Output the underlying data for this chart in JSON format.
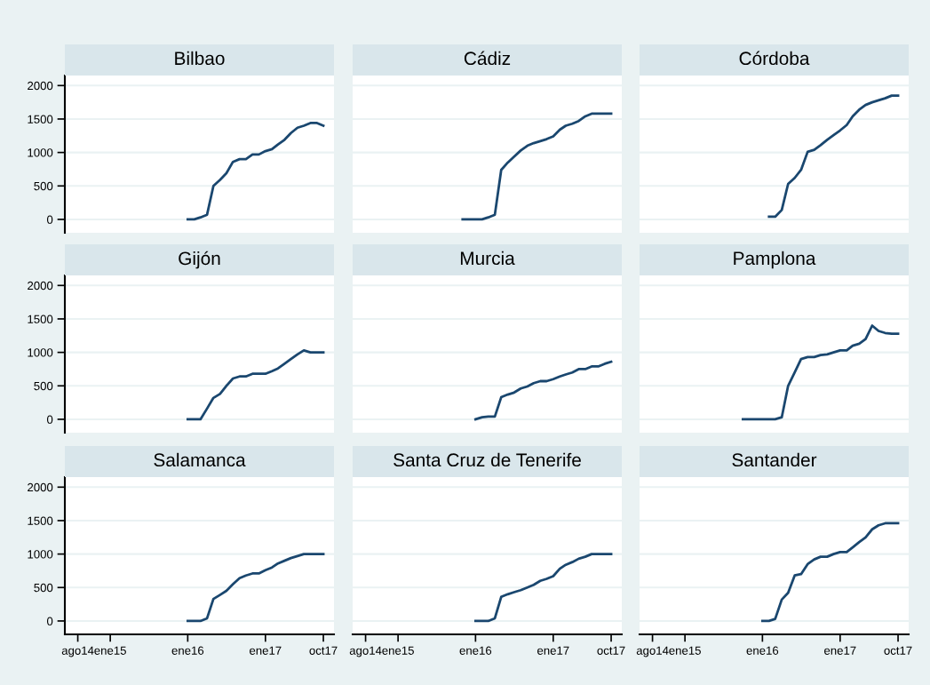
{
  "chart_data": [
    {
      "type": "line",
      "title": "Bilbao",
      "xlim": [
        "2014-06-01",
        "2017-11-20"
      ],
      "ylim": [
        -200,
        2150
      ],
      "yticks": [
        0,
        500,
        1000,
        1500,
        2000
      ],
      "grid": "y",
      "tick_labels": "y",
      "series": [
        {
          "color": "#1a476f",
          "x": [
            "2016-01",
            "2016-02",
            "2016-03",
            "2016-04",
            "2016-05",
            "2016-06",
            "2016-07",
            "2016-08",
            "2016-09",
            "2016-10",
            "2016-11",
            "2016-12",
            "2017-01",
            "2017-02",
            "2017-03",
            "2017-04",
            "2017-05",
            "2017-06",
            "2017-07",
            "2017-08",
            "2017-09",
            "2017-10"
          ],
          "values": [
            0,
            0,
            30,
            70,
            500,
            590,
            690,
            860,
            900,
            900,
            970,
            970,
            1020,
            1050,
            1120,
            1190,
            1290,
            1370,
            1400,
            1440,
            1440,
            1400
          ]
        }
      ]
    },
    {
      "type": "line",
      "title": "Cádiz",
      "xlim": [
        "2014-06-01",
        "2017-11-20"
      ],
      "ylim": [
        -200,
        2150
      ],
      "yticks": [
        0,
        500,
        1000,
        1500,
        2000
      ],
      "grid": "y",
      "tick_labels": false,
      "series": [
        {
          "color": "#1a476f",
          "x": [
            "2015-11",
            "2015-12",
            "2016-01",
            "2016-02",
            "2016-03",
            "2016-04",
            "2016-05",
            "2016-06",
            "2016-07",
            "2016-08",
            "2016-09",
            "2016-10",
            "2016-11",
            "2016-12",
            "2017-01",
            "2017-02",
            "2017-03",
            "2017-04",
            "2017-05",
            "2017-06",
            "2017-07",
            "2017-08",
            "2017-09",
            "2017-10"
          ],
          "values": [
            0,
            0,
            0,
            0,
            30,
            70,
            740,
            850,
            940,
            1030,
            1100,
            1140,
            1170,
            1200,
            1240,
            1340,
            1400,
            1430,
            1470,
            1540,
            1580,
            1580,
            1580,
            1580
          ]
        }
      ]
    },
    {
      "type": "line",
      "title": "Córdoba",
      "xlim": [
        "2014-06-01",
        "2017-11-20"
      ],
      "ylim": [
        -200,
        2150
      ],
      "yticks": [
        0,
        500,
        1000,
        1500,
        2000
      ],
      "grid": "y",
      "tick_labels": false,
      "series": [
        {
          "color": "#1a476f",
          "x": [
            "2016-02",
            "2016-03",
            "2016-04",
            "2016-05",
            "2016-06",
            "2016-07",
            "2016-08",
            "2016-09",
            "2016-10",
            "2016-11",
            "2016-12",
            "2017-01",
            "2017-02",
            "2017-03",
            "2017-04",
            "2017-05",
            "2017-06",
            "2017-07",
            "2017-08",
            "2017-09",
            "2017-10"
          ],
          "values": [
            40,
            40,
            140,
            530,
            620,
            740,
            1010,
            1040,
            1110,
            1190,
            1260,
            1330,
            1410,
            1540,
            1640,
            1710,
            1750,
            1780,
            1810,
            1850,
            1850
          ]
        }
      ]
    },
    {
      "type": "line",
      "title": "Gijón",
      "xlim": [
        "2014-06-01",
        "2017-11-20"
      ],
      "ylim": [
        -200,
        2150
      ],
      "yticks": [
        0,
        500,
        1000,
        1500,
        2000
      ],
      "grid": "y",
      "tick_labels": "y",
      "series": [
        {
          "color": "#1a476f",
          "x": [
            "2016-01",
            "2016-02",
            "2016-03",
            "2016-04",
            "2016-05",
            "2016-06",
            "2016-07",
            "2016-08",
            "2016-09",
            "2016-10",
            "2016-11",
            "2016-12",
            "2017-01",
            "2017-02",
            "2017-03",
            "2017-04",
            "2017-05",
            "2017-06",
            "2017-07",
            "2017-08",
            "2017-09",
            "2017-10"
          ],
          "values": [
            0,
            0,
            0,
            160,
            320,
            380,
            500,
            610,
            640,
            640,
            680,
            680,
            680,
            720,
            760,
            830,
            900,
            970,
            1030,
            1000,
            1000,
            1000
          ]
        }
      ]
    },
    {
      "type": "line",
      "title": "Murcia",
      "xlim": [
        "2014-06-01",
        "2017-11-20"
      ],
      "ylim": [
        -200,
        2150
      ],
      "yticks": [
        0,
        500,
        1000,
        1500,
        2000
      ],
      "grid": "y",
      "tick_labels": false,
      "series": [
        {
          "color": "#1a476f",
          "x": [
            "2016-01",
            "2016-02",
            "2016-03",
            "2016-04",
            "2016-05",
            "2016-06",
            "2016-07",
            "2016-08",
            "2016-09",
            "2016-10",
            "2016-11",
            "2016-12",
            "2017-01",
            "2017-02",
            "2017-03",
            "2017-04",
            "2017-05",
            "2017-06",
            "2017-07",
            "2017-08",
            "2017-09",
            "2017-10"
          ],
          "values": [
            0,
            30,
            40,
            40,
            330,
            370,
            400,
            460,
            490,
            540,
            570,
            570,
            600,
            640,
            670,
            700,
            750,
            750,
            790,
            790,
            830,
            860
          ]
        }
      ]
    },
    {
      "type": "line",
      "title": "Pamplona",
      "xlim": [
        "2014-06-01",
        "2017-11-20"
      ],
      "ylim": [
        -200,
        2150
      ],
      "yticks": [
        0,
        500,
        1000,
        1500,
        2000
      ],
      "grid": "y",
      "tick_labels": false,
      "series": [
        {
          "color": "#1a476f",
          "x": [
            "2015-10",
            "2015-11",
            "2015-12",
            "2016-01",
            "2016-02",
            "2016-03",
            "2016-04",
            "2016-05",
            "2016-06",
            "2016-07",
            "2016-08",
            "2016-09",
            "2016-10",
            "2016-11",
            "2016-12",
            "2017-01",
            "2017-02",
            "2017-03",
            "2017-04",
            "2017-05",
            "2017-06",
            "2017-07",
            "2017-08",
            "2017-09",
            "2017-10"
          ],
          "values": [
            0,
            0,
            0,
            0,
            0,
            0,
            30,
            500,
            700,
            900,
            930,
            930,
            960,
            970,
            1000,
            1030,
            1030,
            1100,
            1130,
            1200,
            1400,
            1320,
            1290,
            1280,
            1280
          ]
        }
      ]
    },
    {
      "type": "line",
      "title": "Salamanca",
      "xlim": [
        "2014-06-01",
        "2017-11-20"
      ],
      "xticks": [
        {
          "value": "2014-08",
          "label": "ago14"
        },
        {
          "value": "2015-01",
          "label": "ene15"
        },
        {
          "value": "2016-01",
          "label": "ene16"
        },
        {
          "value": "2017-01",
          "label": "ene17"
        },
        {
          "value": "2017-10",
          "label": "oct17"
        }
      ],
      "ylim": [
        -200,
        2150
      ],
      "yticks": [
        0,
        500,
        1000,
        1500,
        2000
      ],
      "grid": "y",
      "series": [
        {
          "color": "#1a476f",
          "x": [
            "2016-01",
            "2016-02",
            "2016-03",
            "2016-04",
            "2016-05",
            "2016-06",
            "2016-07",
            "2016-08",
            "2016-09",
            "2016-10",
            "2016-11",
            "2016-12",
            "2017-01",
            "2017-02",
            "2017-03",
            "2017-04",
            "2017-05",
            "2017-06",
            "2017-07",
            "2017-08",
            "2017-09",
            "2017-10"
          ],
          "values": [
            0,
            0,
            0,
            40,
            330,
            390,
            450,
            550,
            640,
            680,
            710,
            710,
            760,
            800,
            860,
            900,
            940,
            970,
            1000,
            1000,
            1000,
            1000
          ]
        }
      ]
    },
    {
      "type": "line",
      "title": "Santa Cruz de Tenerife",
      "xlim": [
        "2014-06-01",
        "2017-11-20"
      ],
      "xticks": [
        {
          "value": "2014-08",
          "label": "ago14"
        },
        {
          "value": "2015-01",
          "label": "ene15"
        },
        {
          "value": "2016-01",
          "label": "ene16"
        },
        {
          "value": "2017-01",
          "label": "ene17"
        },
        {
          "value": "2017-10",
          "label": "oct17"
        }
      ],
      "ylim": [
        -200,
        2150
      ],
      "yticks": [
        0,
        500,
        1000,
        1500,
        2000
      ],
      "grid": "y",
      "tick_labels": "x",
      "series": [
        {
          "color": "#1a476f",
          "x": [
            "2016-01",
            "2016-02",
            "2016-03",
            "2016-04",
            "2016-05",
            "2016-06",
            "2016-07",
            "2016-08",
            "2016-09",
            "2016-10",
            "2016-11",
            "2016-12",
            "2017-01",
            "2017-02",
            "2017-03",
            "2017-04",
            "2017-05",
            "2017-06",
            "2017-07",
            "2017-08",
            "2017-09",
            "2017-10"
          ],
          "values": [
            0,
            0,
            0,
            40,
            360,
            400,
            430,
            460,
            500,
            540,
            600,
            630,
            670,
            780,
            840,
            880,
            930,
            960,
            1000,
            1000,
            1000,
            1000
          ]
        }
      ]
    },
    {
      "type": "line",
      "title": "Santander",
      "xlim": [
        "2014-06-01",
        "2017-11-20"
      ],
      "xticks": [
        {
          "value": "2014-08",
          "label": "ago14"
        },
        {
          "value": "2015-01",
          "label": "ene15"
        },
        {
          "value": "2016-01",
          "label": "ene16"
        },
        {
          "value": "2017-01",
          "label": "ene17"
        },
        {
          "value": "2017-10",
          "label": "oct17"
        }
      ],
      "ylim": [
        -200,
        2150
      ],
      "yticks": [
        0,
        500,
        1000,
        1500,
        2000
      ],
      "grid": "y",
      "tick_labels": "x",
      "series": [
        {
          "color": "#1a476f",
          "x": [
            "2016-01",
            "2016-02",
            "2016-03",
            "2016-04",
            "2016-05",
            "2016-06",
            "2016-07",
            "2016-08",
            "2016-09",
            "2016-10",
            "2016-11",
            "2016-12",
            "2017-01",
            "2017-02",
            "2017-03",
            "2017-04",
            "2017-05",
            "2017-06",
            "2017-07",
            "2017-08",
            "2017-09",
            "2017-10"
          ],
          "values": [
            0,
            0,
            30,
            320,
            420,
            680,
            700,
            850,
            920,
            960,
            960,
            1000,
            1030,
            1030,
            1100,
            1180,
            1250,
            1370,
            1430,
            1460,
            1460,
            1460
          ]
        }
      ]
    }
  ]
}
